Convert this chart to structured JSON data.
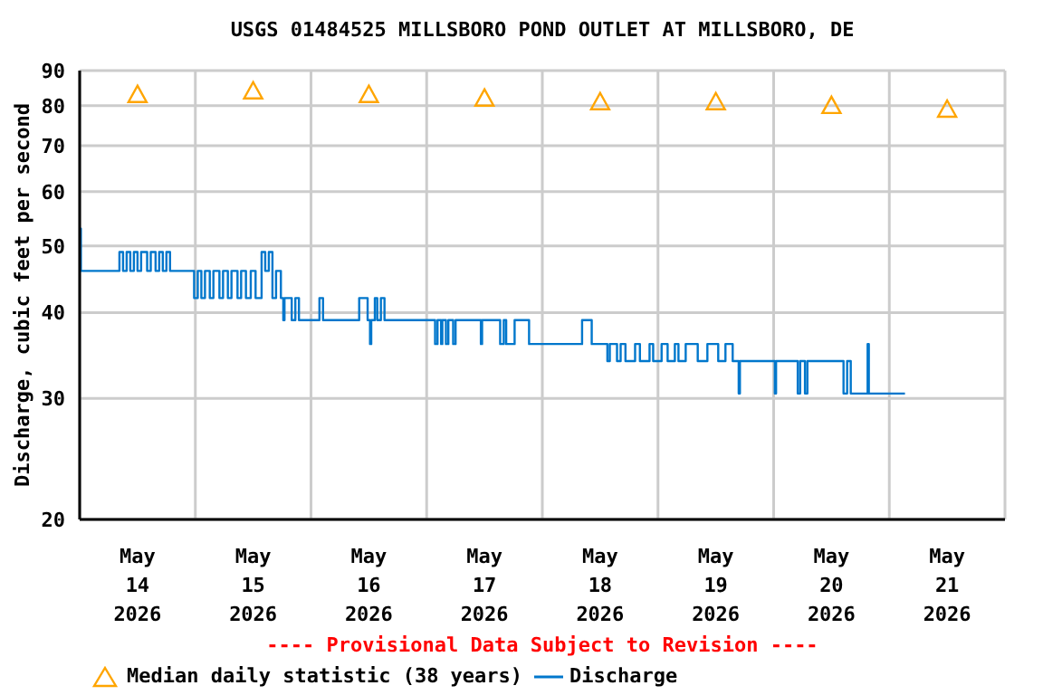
{
  "chart_data": {
    "type": "step",
    "title": "USGS 01484525 MILLSBORO POND OUTLET AT MILLSBORO, DE",
    "ylabel": "Discharge, cubic feet per second",
    "log": "y",
    "grid": true,
    "legend": "bottom",
    "annotations": [
      "---- Provisional Data Subject to Revision ----"
    ],
    "xlim": [
      "2026-05-14T00:00",
      "2026-05-22T00:00"
    ],
    "xticks": [
      {
        "value": "2026-05-14T00:00",
        "label": null
      },
      {
        "value": "2026-05-14T12:00",
        "label": "May\n14\n2026"
      },
      {
        "value": "2026-05-15T00:00",
        "label": null
      },
      {
        "value": "2026-05-15T12:00",
        "label": "May\n15\n2026"
      },
      {
        "value": "2026-05-16T00:00",
        "label": null
      },
      {
        "value": "2026-05-16T12:00",
        "label": "May\n16\n2026"
      },
      {
        "value": "2026-05-17T00:00",
        "label": null
      },
      {
        "value": "2026-05-17T12:00",
        "label": "May\n17\n2026"
      },
      {
        "value": "2026-05-18T00:00",
        "label": null
      },
      {
        "value": "2026-05-18T12:00",
        "label": "May\n18\n2026"
      },
      {
        "value": "2026-05-19T00:00",
        "label": null
      },
      {
        "value": "2026-05-19T12:00",
        "label": "May\n19\n2026"
      },
      {
        "value": "2026-05-20T00:00",
        "label": null
      },
      {
        "value": "2026-05-20T12:00",
        "label": "May\n20\n2026"
      },
      {
        "value": "2026-05-21T00:00",
        "label": null
      },
      {
        "value": "2026-05-21T12:00",
        "label": "May\n21\n2026"
      },
      {
        "value": "2026-05-22T00:00",
        "label": null
      }
    ],
    "ylim": [
      20,
      90
    ],
    "yticks": [
      20,
      30,
      40,
      50,
      60,
      70,
      80,
      90
    ],
    "series": [
      {
        "name": "Median daily statistic (38 years)",
        "type": "scatter",
        "marker": "triangle",
        "color": "#ffa500",
        "x": [
          "2026-05-14T12:00",
          "2026-05-15T12:00",
          "2026-05-16T12:00",
          "2026-05-17T12:00",
          "2026-05-18T12:00",
          "2026-05-19T12:00",
          "2026-05-20T12:00",
          "2026-05-21T12:00"
        ],
        "values": [
          83,
          84,
          83,
          82,
          81,
          81,
          80,
          79
        ]
      },
      {
        "name": "Discharge",
        "color": "#0077cc",
        "x": [
          "2026-05-14T00:00",
          "2026-05-14T00:15",
          "2026-05-14T08:15",
          "2026-05-14T09:00",
          "2026-05-14T09:45",
          "2026-05-14T10:30",
          "2026-05-14T11:15",
          "2026-05-14T12:00",
          "2026-05-14T12:45",
          "2026-05-14T14:00",
          "2026-05-14T14:45",
          "2026-05-14T15:45",
          "2026-05-14T16:30",
          "2026-05-14T17:15",
          "2026-05-14T18:00",
          "2026-05-14T18:45",
          "2026-05-14T23:45",
          "2026-05-15T00:30",
          "2026-05-15T01:15",
          "2026-05-15T02:00",
          "2026-05-15T03:00",
          "2026-05-15T03:45",
          "2026-05-15T05:00",
          "2026-05-15T05:45",
          "2026-05-15T06:45",
          "2026-05-15T07:30",
          "2026-05-15T08:45",
          "2026-05-15T09:30",
          "2026-05-15T10:30",
          "2026-05-15T11:30",
          "2026-05-15T12:30",
          "2026-05-15T13:45",
          "2026-05-15T14:30",
          "2026-05-15T15:15",
          "2026-05-15T16:00",
          "2026-05-15T16:45",
          "2026-05-15T17:45",
          "2026-05-15T18:15",
          "2026-05-15T18:30",
          "2026-05-15T20:00",
          "2026-05-15T20:45",
          "2026-05-15T21:30",
          "2026-05-16T01:45",
          "2026-05-16T02:30",
          "2026-05-16T10:00",
          "2026-05-16T11:45",
          "2026-05-16T12:15",
          "2026-05-16T12:30",
          "2026-05-16T13:15",
          "2026-05-16T13:45",
          "2026-05-16T14:30",
          "2026-05-16T15:15",
          "2026-05-17T01:45",
          "2026-05-17T02:15",
          "2026-05-17T03:00",
          "2026-05-17T03:15",
          "2026-05-17T04:00",
          "2026-05-17T04:30",
          "2026-05-17T05:30",
          "2026-05-17T06:00",
          "2026-05-17T11:15",
          "2026-05-17T11:30",
          "2026-05-17T15:15",
          "2026-05-17T16:00",
          "2026-05-17T16:30",
          "2026-05-17T18:15",
          "2026-05-17T21:15",
          "2026-05-18T08:15",
          "2026-05-18T10:15",
          "2026-05-18T13:30",
          "2026-05-18T14:00",
          "2026-05-18T15:30",
          "2026-05-18T16:15",
          "2026-05-18T17:15",
          "2026-05-18T19:15",
          "2026-05-18T20:15",
          "2026-05-18T22:15",
          "2026-05-18T23:00",
          "2026-05-19T00:45",
          "2026-05-19T02:00",
          "2026-05-19T03:30",
          "2026-05-19T04:15",
          "2026-05-19T05:45",
          "2026-05-19T08:15",
          "2026-05-19T10:15",
          "2026-05-19T12:30",
          "2026-05-19T14:00",
          "2026-05-19T15:30",
          "2026-05-19T16:45",
          "2026-05-19T17:00",
          "2026-05-20T00:15",
          "2026-05-20T00:30",
          "2026-05-20T05:00",
          "2026-05-20T05:30",
          "2026-05-20T06:30",
          "2026-05-20T07:00",
          "2026-05-20T14:30",
          "2026-05-20T15:15",
          "2026-05-20T16:00",
          "2026-05-20T19:30",
          "2026-05-20T19:45",
          "2026-05-21T03:15"
        ],
        "values": [
          53,
          46,
          49,
          46,
          49,
          46,
          49,
          46,
          49,
          46,
          49,
          46,
          49,
          46,
          49,
          46,
          42,
          46,
          42,
          46,
          42,
          46,
          42,
          46,
          42,
          46,
          42,
          46,
          42,
          46,
          42,
          49,
          46,
          49,
          42,
          46,
          42,
          39,
          42,
          39,
          42,
          39,
          42,
          39,
          42,
          39,
          36,
          39,
          42,
          39,
          42,
          39,
          36,
          39,
          36,
          39,
          36,
          39,
          36,
          39,
          36,
          39,
          36,
          39,
          36,
          39,
          36,
          39,
          36,
          34,
          36,
          34,
          36,
          34,
          36,
          34,
          36,
          34,
          36,
          34,
          36,
          34,
          36,
          34,
          36,
          34,
          36,
          34,
          30.5,
          34,
          30.5,
          34,
          30.5,
          34,
          30.5,
          34,
          30.5,
          34,
          30.5,
          36,
          30.5,
          30.5
        ]
      }
    ]
  }
}
